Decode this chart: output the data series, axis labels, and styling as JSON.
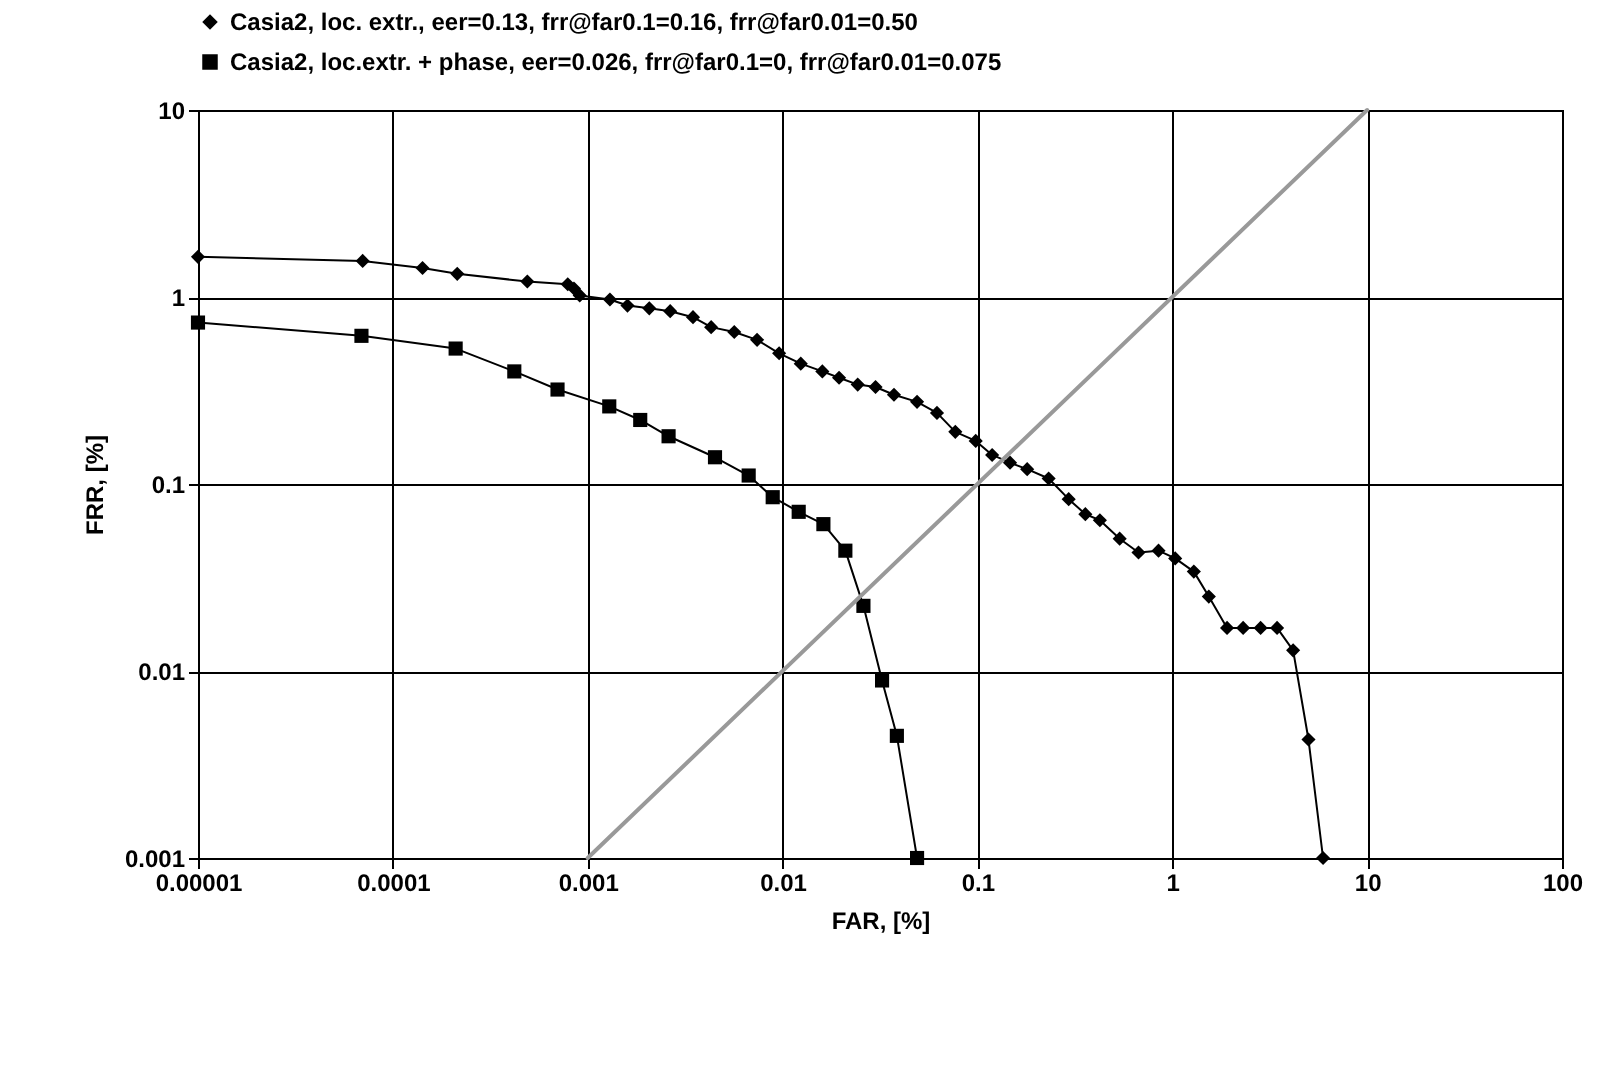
{
  "chart_data": {
    "type": "line",
    "xlabel": "FAR, [%]",
    "ylabel": "FRR, [%]",
    "log": "xy",
    "grid": true,
    "legend": "top",
    "line_style": "solid",
    "xlim": [
      1e-05,
      100
    ],
    "xticks": [
      {
        "value": 1e-05,
        "label": "0.00001"
      },
      0.0001,
      0.001,
      0.01,
      0.1,
      1,
      10,
      100
    ],
    "ylim": [
      0.001,
      10
    ],
    "yticks": [
      0.001,
      0.01,
      0.1,
      1,
      10
    ],
    "series": [
      {
        "name": "Casia2, loc. extr., eer=0.13, frr@far0.1=0.16, frr@far0.01=0.50",
        "color": "#000000",
        "marker": "diamond",
        "x": [
          1e-05,
          7e-05,
          0.000142,
          0.000214,
          0.00049,
          0.00079,
          0.00085,
          0.00091,
          0.0013,
          0.0016,
          0.00207,
          0.00265,
          0.00347,
          0.0043,
          0.00565,
          0.0074,
          0.0096,
          0.0124,
          0.016,
          0.0195,
          0.0243,
          0.03,
          0.0373,
          0.049,
          0.062,
          0.077,
          0.098,
          0.119,
          0.147,
          0.18,
          0.232,
          0.294,
          0.358,
          0.425,
          0.537,
          0.671,
          0.85,
          1.035,
          1.29,
          1.54,
          1.91,
          2.31,
          2.84,
          3.45,
          4.17,
          5.0,
          5.94
        ],
        "values": [
          1.64,
          1.56,
          1.43,
          1.33,
          1.21,
          1.17,
          1.11,
          1.02,
          0.97,
          0.9,
          0.87,
          0.84,
          0.78,
          0.69,
          0.65,
          0.59,
          0.5,
          0.44,
          0.4,
          0.37,
          0.34,
          0.33,
          0.3,
          0.275,
          0.24,
          0.19,
          0.17,
          0.143,
          0.13,
          0.12,
          0.107,
          0.083,
          0.069,
          0.064,
          0.051,
          0.043,
          0.044,
          0.04,
          0.034,
          0.025,
          0.017,
          0.017,
          0.017,
          0.017,
          0.0129,
          0.0043,
          0.001
        ]
      },
      {
        "name": "Casia2, loc.extr. + phase, eer=0.026, frr@far0.1=0, frr@far0.01=0.075",
        "color": "#000000",
        "marker": "square",
        "x": [
          1e-05,
          6.9e-05,
          0.00021,
          0.00042,
          0.0007,
          0.00129,
          0.00186,
          0.0026,
          0.0045,
          0.0067,
          0.0089,
          0.0121,
          0.0162,
          0.021,
          0.026,
          0.0324,
          0.0386,
          0.049
        ],
        "values": [
          0.73,
          0.62,
          0.53,
          0.4,
          0.32,
          0.26,
          0.22,
          0.18,
          0.139,
          0.111,
          0.085,
          0.071,
          0.061,
          0.044,
          0.0223,
          0.0089,
          0.0045,
          0.001
        ]
      },
      {
        "color": "#999999",
        "marker": "none",
        "x": [
          0.001,
          10
        ],
        "values": [
          0.001,
          10
        ]
      }
    ]
  }
}
